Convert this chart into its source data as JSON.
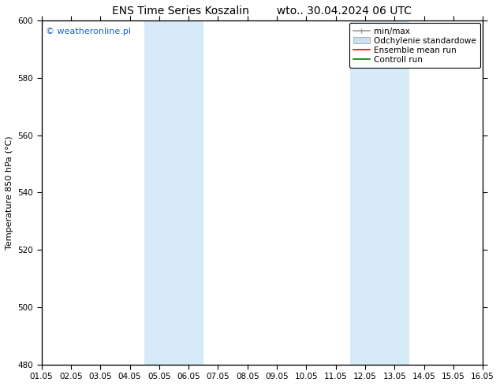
{
  "title_left": "ENS Time Series Koszalin",
  "title_right": "wto.. 30.04.2024 06 UTC",
  "ylabel": "Temperature 850 hPa (°C)",
  "xlim": [
    0,
    15
  ],
  "ylim": [
    480,
    600
  ],
  "yticks": [
    480,
    500,
    520,
    540,
    560,
    580,
    600
  ],
  "xtick_labels": [
    "01.05",
    "02.05",
    "03.05",
    "04.05",
    "05.05",
    "06.05",
    "07.05",
    "08.05",
    "09.05",
    "10.05",
    "11.05",
    "12.05",
    "13.05",
    "14.05",
    "15.05",
    "16.05"
  ],
  "xtick_positions": [
    0,
    1,
    2,
    3,
    4,
    5,
    6,
    7,
    8,
    9,
    10,
    11,
    12,
    13,
    14,
    15
  ],
  "shaded_regions": [
    {
      "xmin": 3.5,
      "xmax": 5.5
    },
    {
      "xmin": 10.5,
      "xmax": 12.5
    }
  ],
  "shade_color": "#d6eaf8",
  "watermark_text": "© weatheronline.pl",
  "watermark_color": "#1565c0",
  "legend_entries": [
    {
      "label": "min/max",
      "color": "#999999",
      "lw": 1.2,
      "style": "line_with_caps"
    },
    {
      "label": "Odchylenie standardowe",
      "color": "#cce0f5",
      "lw": 7,
      "style": "bar"
    },
    {
      "label": "Ensemble mean run",
      "color": "red",
      "lw": 1.2,
      "style": "line"
    },
    {
      "label": "Controll run",
      "color": "green",
      "lw": 1.2,
      "style": "line"
    }
  ],
  "bg_color": "#ffffff",
  "font_size_title": 10,
  "font_size_axis": 8,
  "font_size_tick": 7.5,
  "font_size_legend": 7.5,
  "font_size_watermark": 8
}
